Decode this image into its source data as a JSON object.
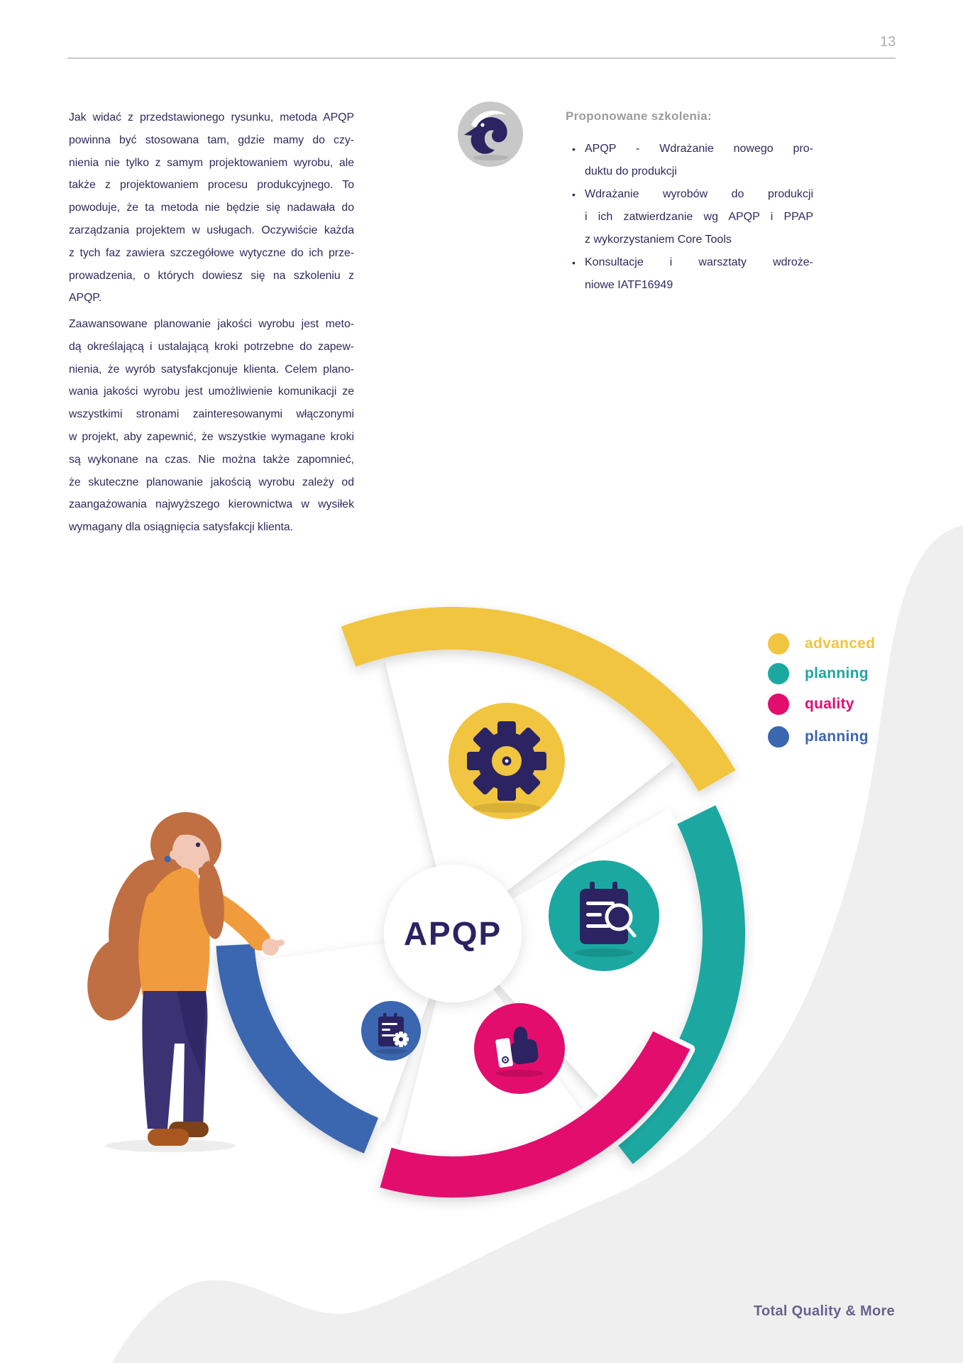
{
  "page": {
    "number": "13",
    "footer_brand": "Total Quality & More"
  },
  "article": {
    "paragraphs": [
      "Jak widać z przedstawionego rysunku, metoda APQP\npowinna być stosowana tam, gdzie mamy do czy-\nnienia nie tylko z samym projektowaniem wyrobu, ale\ntakże z projektowaniem procesu produkcyjnego. To\npowoduje, że ta metoda nie będzie się nadawała do\nzarządzania projektem w usługach. Oczywiście każda\nz tych faz zawiera szczegółowe wytyczne do ich prze-\nprowadzenia, o których dowiesz się na szkoleniu z APQP.",
      "Zaawansowane planowanie jakości wyrobu jest meto-\ndą określającą i ustalającą kroki potrzebne do zapew-\nnienia, że wyrób satysfakcjonuje klienta. Celem plano-\nwania jakości wyrobu jest umożliwienie komunikacji ze\nwszystkimi stronami zainteresowanymi włączonymi\nw projekt, aby zapewnić, że wszystkie wymagane kroki\nsą wykonane na czas. Nie można także zapomnieć,\nże skuteczne planowanie jakością wyrobu zależy od\nzaangażowania najwyższego kierownictwa w wysiłek\nwymagany dla osiągnięcia satysfakcji klienta."
    ]
  },
  "trainings": {
    "heading": "Proponowane szkolenia:",
    "logo_icon": "bird-logo",
    "items": [
      "APQP - Wdrażanie nowego pro-\nduktu do produkcji",
      "Wdrażanie wyrobów do produkcji\ni ich zatwierdzanie wg APQP i PPAP\nz wykorzystaniem Core Tools",
      "Konsultacje i warsztaty wdroże-\nniowe IATF16949"
    ]
  },
  "diagram": {
    "center_label": "APQP",
    "legend": [
      {
        "label": "advanced",
        "color": "#F1C53F"
      },
      {
        "label": "planning",
        "color": "#1BA8A1"
      },
      {
        "label": "quality",
        "color": "#E30D6E"
      },
      {
        "label": "planning",
        "color": "#3B66B0"
      }
    ],
    "segments": [
      {
        "icon": "gear-icon",
        "color": "#F1C53F"
      },
      {
        "icon": "clipboard-search-icon",
        "color": "#1BA8A1"
      },
      {
        "icon": "thumbs-up-icon",
        "color": "#E30D6E"
      },
      {
        "icon": "clipboard-gear-icon",
        "color": "#3B66B0"
      }
    ]
  },
  "colors": {
    "text_navy": "#2E2A5C",
    "icon_navy": "#2B2362",
    "yellow": "#F1C53F",
    "teal": "#1BA8A1",
    "pink": "#E30D6E",
    "blue": "#3B66B0",
    "background_gray": "#EFEFEF",
    "heading_gray": "#9C9C9C",
    "footer_purple": "#6A6190"
  }
}
